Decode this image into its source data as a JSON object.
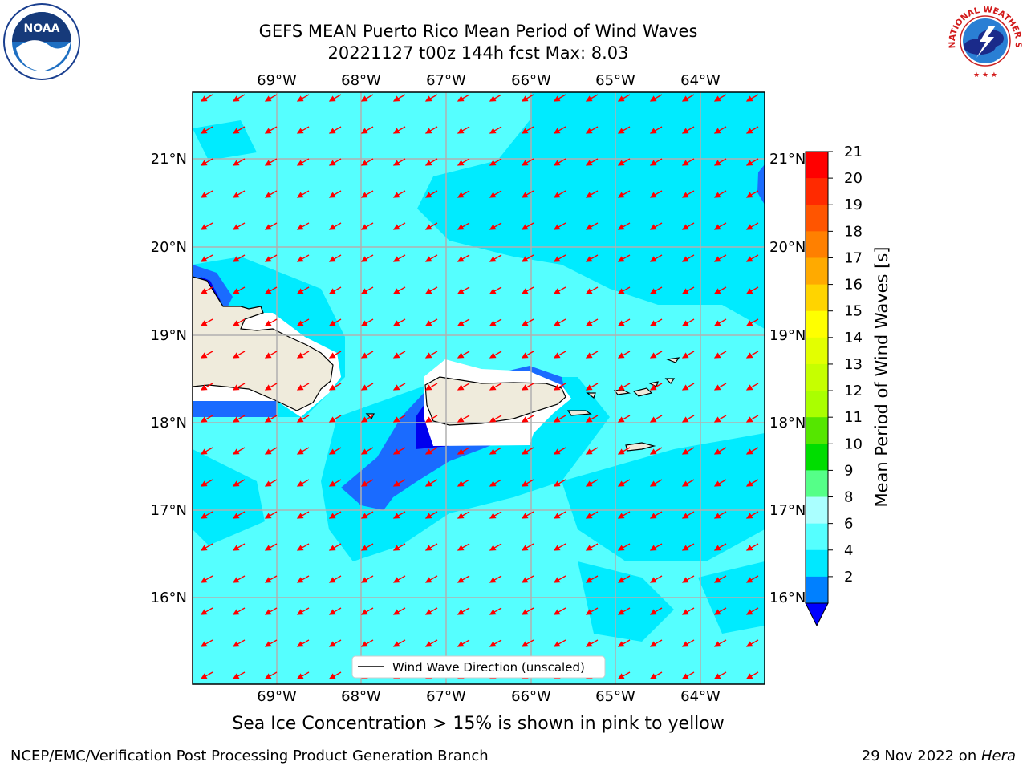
{
  "header": {
    "title_line1": "GEFS MEAN Puerto Rico Mean Period of Wind Waves",
    "title_line2": "20221127 t00z 144h fcst   Max: 8.03"
  },
  "map": {
    "lon_labels": [
      "69°W",
      "68°W",
      "67°W",
      "66°W",
      "65°W",
      "64°W"
    ],
    "lat_labels": [
      "21°N",
      "20°N",
      "19°N",
      "18°N",
      "17°N",
      "16°N"
    ],
    "legend_label": "Wind Wave Direction (unscaled)",
    "arrow_color": "#ff0000",
    "land_color": "#efebdc"
  },
  "colorbar": {
    "label": "Mean Period of Wind Waves [s]",
    "ticks": [
      "21",
      "20",
      "19",
      "18",
      "17",
      "16",
      "15",
      "14",
      "13",
      "12",
      "11",
      "10",
      "9",
      "8",
      "6",
      "4",
      "2"
    ],
    "colors": [
      "#ff0000",
      "#ff2a00",
      "#ff5500",
      "#ff8000",
      "#ffaa00",
      "#ffd400",
      "#ffff00",
      "#e3ff00",
      "#c6ff00",
      "#aaff00",
      "#55e600",
      "#00dd00",
      "#55ff88",
      "#aaffff",
      "#55ffff",
      "#00e8ff",
      "#0080ff"
    ],
    "underflow_color": "#0000ff"
  },
  "caption": "Sea Ice Concentration > 15% is shown in pink to yellow",
  "footer": {
    "left": "NCEP/EMC/Verification Post Processing Product Generation Branch",
    "right_prefix": "29 Nov 2022 on ",
    "right_host": "Hera"
  },
  "logos": {
    "noaa": "NOAA",
    "nws": "NATIONAL WEATHER SERVICE"
  }
}
